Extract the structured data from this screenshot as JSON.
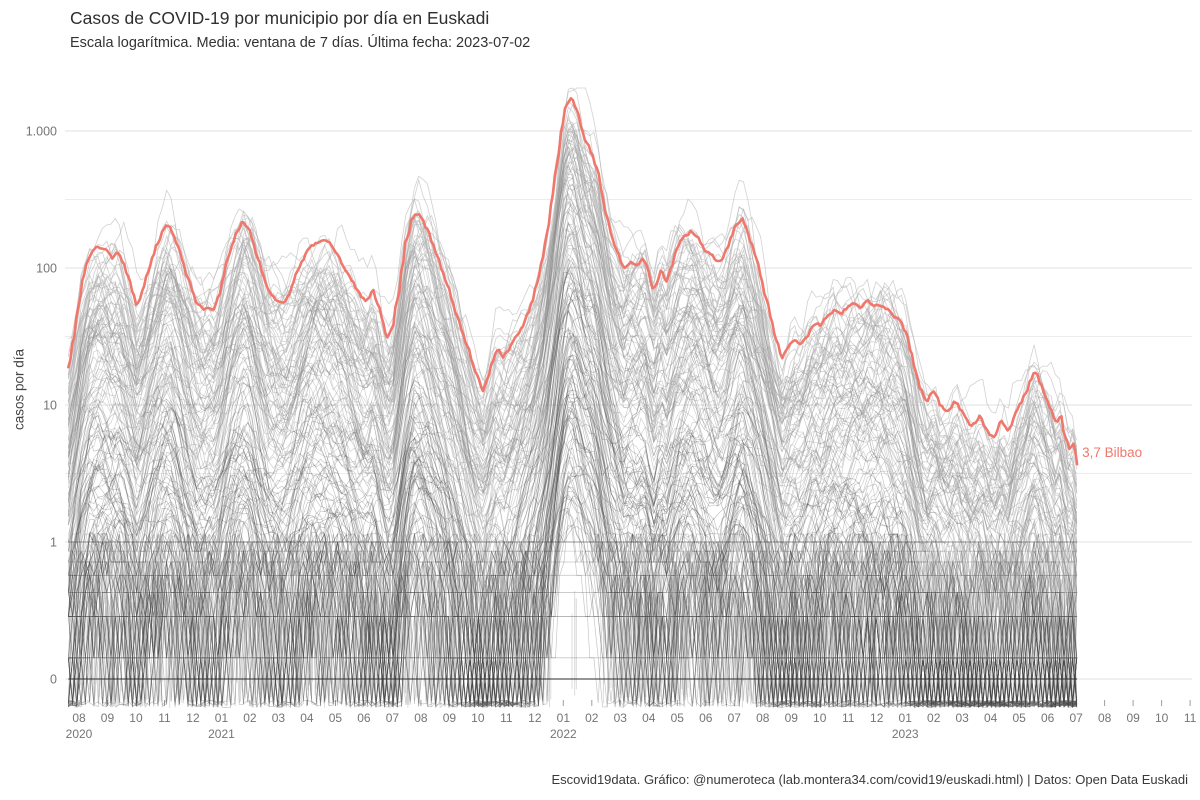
{
  "page": {
    "title": "Casos de COVID-19 por municipio por día en Euskadi",
    "subtitle": "Escala logarítmica. Media: ventana de 7 días. Última fecha: 2023-07-02",
    "footer": "Escovid19data. Gráfico: @numeroteca (lab.montera34.com/covid19/euskadi.html) | Datos: Open Data Euskadi"
  },
  "chart_data": {
    "type": "line",
    "title": "Casos de COVID-19 por municipio por día en Euskadi",
    "subtitle": "Escala logarítmica. Media: ventana de 7 días. Última fecha: 2023-07-02",
    "ylabel": "casos por día",
    "xlabel": "",
    "y_scale": "log",
    "y_ticks": [
      {
        "label": "1.000",
        "value": 1000
      },
      {
        "label": "100",
        "value": 100
      },
      {
        "label": "10",
        "value": 10
      },
      {
        "label": "1",
        "value": 1
      },
      {
        "label": "0",
        "value": 0.1
      }
    ],
    "y_minor_gridlines": [
      316,
      31.6,
      3.16
    ],
    "x_start": "2020-08",
    "x_ticks": [
      "08",
      "09",
      "10",
      "11",
      "12",
      "01",
      "02",
      "03",
      "04",
      "05",
      "06",
      "07",
      "08",
      "09",
      "10",
      "11",
      "12",
      "01",
      "02",
      "03",
      "04",
      "05",
      "06",
      "07",
      "08",
      "09",
      "10",
      "11",
      "12",
      "01",
      "02",
      "03",
      "04",
      "05",
      "06",
      "07",
      "08",
      "09",
      "10",
      "11"
    ],
    "year_labels": [
      {
        "label": "2020",
        "month_index": 0
      },
      {
        "label": "2021",
        "month_index": 5
      },
      {
        "label": "2022",
        "month_index": 17
      },
      {
        "label": "2023",
        "month_index": 29
      }
    ],
    "grid": true,
    "legend_position": "none",
    "background_series": {
      "description": "Municipios de Euskadi (aprox. 250 líneas grises, media móvil de 7 días)",
      "color": "#555555"
    },
    "highlight_series": {
      "name": "Bilbao",
      "color": "#f0776c",
      "last_value": 3.7,
      "last_date": "2023-07-02",
      "last_value_label": "3,7 Bilbao",
      "points": [
        [
          "2020-07-20",
          19
        ],
        [
          "2020-07-28",
          38
        ],
        [
          "2020-08-04",
          75
        ],
        [
          "2020-08-12",
          120
        ],
        [
          "2020-08-20",
          140
        ],
        [
          "2020-08-30",
          132
        ],
        [
          "2020-09-06",
          118
        ],
        [
          "2020-09-12",
          128
        ],
        [
          "2020-09-19",
          100
        ],
        [
          "2020-09-26",
          74
        ],
        [
          "2020-10-02",
          52
        ],
        [
          "2020-10-09",
          68
        ],
        [
          "2020-10-16",
          105
        ],
        [
          "2020-10-24",
          150
        ],
        [
          "2020-11-02",
          200
        ],
        [
          "2020-11-08",
          190
        ],
        [
          "2020-11-14",
          150
        ],
        [
          "2020-11-21",
          105
        ],
        [
          "2020-11-28",
          75
        ],
        [
          "2020-12-05",
          55
        ],
        [
          "2020-12-12",
          48
        ],
        [
          "2020-12-18",
          53
        ],
        [
          "2020-12-24",
          49
        ],
        [
          "2020-12-31",
          72
        ],
        [
          "2021-01-08",
          120
        ],
        [
          "2021-01-16",
          175
        ],
        [
          "2021-01-24",
          213
        ],
        [
          "2021-01-31",
          195
        ],
        [
          "2021-02-07",
          140
        ],
        [
          "2021-02-14",
          95
        ],
        [
          "2021-02-21",
          70
        ],
        [
          "2021-03-01",
          60
        ],
        [
          "2021-03-08",
          58
        ],
        [
          "2021-03-16",
          78
        ],
        [
          "2021-03-24",
          105
        ],
        [
          "2021-04-01",
          135
        ],
        [
          "2021-04-10",
          148
        ],
        [
          "2021-04-18",
          152
        ],
        [
          "2021-04-26",
          145
        ],
        [
          "2021-05-04",
          125
        ],
        [
          "2021-05-12",
          100
        ],
        [
          "2021-05-20",
          78
        ],
        [
          "2021-05-28",
          62
        ],
        [
          "2021-06-04",
          58
        ],
        [
          "2021-06-11",
          68
        ],
        [
          "2021-06-18",
          48
        ],
        [
          "2021-06-26",
          31
        ],
        [
          "2021-07-02",
          38
        ],
        [
          "2021-07-08",
          70
        ],
        [
          "2021-07-15",
          150
        ],
        [
          "2021-07-21",
          225
        ],
        [
          "2021-07-25",
          260
        ],
        [
          "2021-08-01",
          235
        ],
        [
          "2021-08-10",
          175
        ],
        [
          "2021-08-18",
          125
        ],
        [
          "2021-08-26",
          90
        ],
        [
          "2021-09-04",
          60
        ],
        [
          "2021-09-12",
          40
        ],
        [
          "2021-09-20",
          27
        ],
        [
          "2021-09-28",
          18
        ],
        [
          "2021-10-07",
          12.5
        ],
        [
          "2021-10-16",
          20
        ],
        [
          "2021-10-22",
          25
        ],
        [
          "2021-10-28",
          22
        ],
        [
          "2021-11-05",
          26
        ],
        [
          "2021-11-13",
          32
        ],
        [
          "2021-11-21",
          42
        ],
        [
          "2021-11-29",
          60
        ],
        [
          "2021-12-06",
          95
        ],
        [
          "2021-12-12",
          150
        ],
        [
          "2021-12-18",
          290
        ],
        [
          "2021-12-24",
          560
        ],
        [
          "2021-12-30",
          1100
        ],
        [
          "2022-01-04",
          1600
        ],
        [
          "2022-01-08",
          1800
        ],
        [
          "2022-01-13",
          1650
        ],
        [
          "2022-01-18",
          1250
        ],
        [
          "2022-01-24",
          900
        ],
        [
          "2022-02-01",
          700
        ],
        [
          "2022-02-08",
          480
        ],
        [
          "2022-02-14",
          290
        ],
        [
          "2022-02-23",
          168
        ],
        [
          "2022-03-05",
          102
        ],
        [
          "2022-03-12",
          118
        ],
        [
          "2022-03-18",
          110
        ],
        [
          "2022-03-26",
          125
        ],
        [
          "2022-04-06",
          68
        ],
        [
          "2022-04-14",
          95
        ],
        [
          "2022-04-20",
          80
        ],
        [
          "2022-05-02",
          146
        ],
        [
          "2022-05-15",
          190
        ],
        [
          "2022-05-24",
          165
        ],
        [
          "2022-06-02",
          135
        ],
        [
          "2022-06-14",
          114
        ],
        [
          "2022-06-20",
          120
        ],
        [
          "2022-06-28",
          165
        ],
        [
          "2022-07-04",
          210
        ],
        [
          "2022-07-10",
          230
        ],
        [
          "2022-07-16",
          170
        ],
        [
          "2022-07-22",
          130
        ],
        [
          "2022-07-28",
          95
        ],
        [
          "2022-08-05",
          58
        ],
        [
          "2022-08-13",
          35
        ],
        [
          "2022-08-21",
          22
        ],
        [
          "2022-08-27",
          25
        ],
        [
          "2022-09-03",
          30
        ],
        [
          "2022-09-10",
          28
        ],
        [
          "2022-09-18",
          33
        ],
        [
          "2022-09-25",
          40
        ],
        [
          "2022-10-02",
          38
        ],
        [
          "2022-10-10",
          46
        ],
        [
          "2022-10-17",
          50
        ],
        [
          "2022-10-24",
          46
        ],
        [
          "2022-10-31",
          52
        ],
        [
          "2022-11-07",
          56
        ],
        [
          "2022-11-14",
          53
        ],
        [
          "2022-11-21",
          57
        ],
        [
          "2022-11-28",
          52
        ],
        [
          "2022-12-05",
          54
        ],
        [
          "2022-12-12",
          50
        ],
        [
          "2022-12-18",
          47
        ],
        [
          "2022-12-26",
          42
        ],
        [
          "2023-01-02",
          34
        ],
        [
          "2023-01-09",
          22
        ],
        [
          "2023-01-16",
          14
        ],
        [
          "2023-01-24",
          11
        ],
        [
          "2023-02-01",
          13
        ],
        [
          "2023-02-08",
          10
        ],
        [
          "2023-02-16",
          8.8
        ],
        [
          "2023-02-24",
          10.5
        ],
        [
          "2023-03-04",
          8.2
        ],
        [
          "2023-03-12",
          6.9
        ],
        [
          "2023-03-20",
          8.4
        ],
        [
          "2023-03-28",
          6.6
        ],
        [
          "2023-04-05",
          5.8
        ],
        [
          "2023-04-12",
          7.8
        ],
        [
          "2023-04-20",
          6.3
        ],
        [
          "2023-04-28",
          8.8
        ],
        [
          "2023-05-06",
          11.5
        ],
        [
          "2023-05-13",
          15.5
        ],
        [
          "2023-05-18",
          17.5
        ],
        [
          "2023-05-24",
          14
        ],
        [
          "2023-05-30",
          11
        ],
        [
          "2023-06-05",
          9.2
        ],
        [
          "2023-06-10",
          7.4
        ],
        [
          "2023-06-15",
          8.5
        ],
        [
          "2023-06-20",
          5.8
        ],
        [
          "2023-06-25",
          4.8
        ],
        [
          "2023-06-29",
          5.3
        ],
        [
          "2023-07-02",
          3.7
        ]
      ]
    }
  }
}
